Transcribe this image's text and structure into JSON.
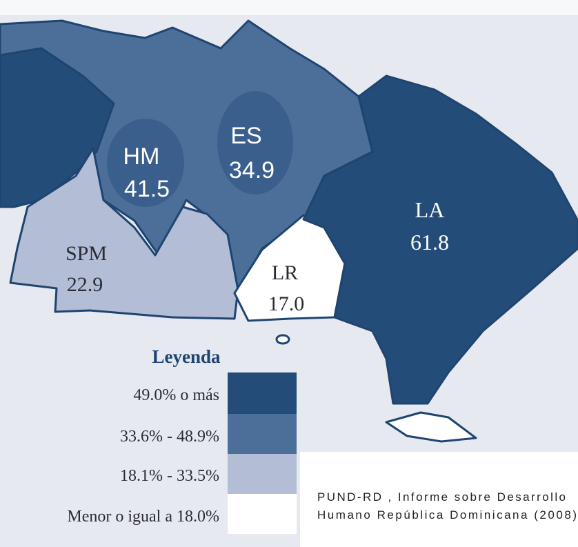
{
  "regions": [
    {
      "code": "HM",
      "value": "41.5"
    },
    {
      "code": "ES",
      "value": "34.9"
    },
    {
      "code": "SPM",
      "value": "22.9"
    },
    {
      "code": "LR",
      "value": "17.0"
    },
    {
      "code": "LA",
      "value": "61.8"
    }
  ],
  "legend": {
    "title": "Leyenda",
    "items": [
      "49.0% o más",
      "33.6% - 48.9%",
      "18.1% - 33.5%",
      "Menor o igual a 18.0%"
    ]
  },
  "source": [
    "PUND-RD , Informe sobre Desarrollo",
    "Humano  República Dominicana (2008)"
  ]
}
